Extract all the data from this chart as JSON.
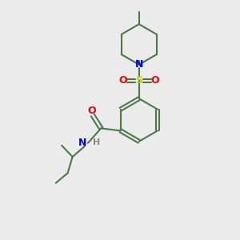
{
  "background_color": "#ebebeb",
  "bond_color": "#4a7a4a",
  "N_color": "#0000ee",
  "O_color": "#ee0000",
  "S_color": "#cccc00",
  "H_color": "#888888",
  "line_width": 1.5,
  "figsize": [
    3.0,
    3.0
  ],
  "dpi": 100,
  "xlim": [
    0,
    10
  ],
  "ylim": [
    0,
    10
  ]
}
